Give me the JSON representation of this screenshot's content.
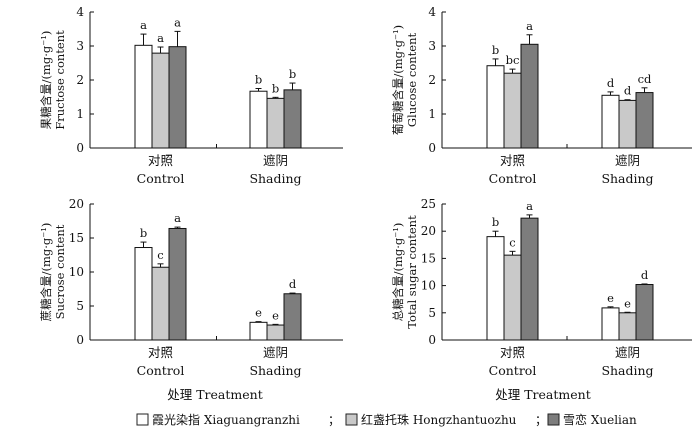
{
  "chart_data": [
    {
      "type": "bar",
      "panel": "top-left",
      "ylabel_cn": "果糖含量/(mg·g⁻¹)",
      "ylabel_en": "Fructose content",
      "ylim": [
        0,
        4
      ],
      "yticks": [
        0,
        1,
        2,
        3,
        4
      ],
      "categories": [
        {
          "cn": "对照",
          "en": "Control"
        },
        {
          "cn": "遮阴",
          "en": "Shading"
        }
      ],
      "series": [
        {
          "name": "霞光染指 Xiaguangranzhi",
          "values": [
            3.02,
            1.67
          ],
          "errors": [
            0.33,
            0.08
          ],
          "letters": [
            "a",
            "b"
          ]
        },
        {
          "name": "红盏托珠 Hongzhantuozhu",
          "values": [
            2.79,
            1.46
          ],
          "errors": [
            0.18,
            0.03
          ],
          "letters": [
            "a",
            "b"
          ]
        },
        {
          "name": "雪恋 Xuelian",
          "values": [
            2.98,
            1.71
          ],
          "errors": [
            0.45,
            0.2
          ],
          "letters": [
            "a",
            "b"
          ]
        }
      ]
    },
    {
      "type": "bar",
      "panel": "top-right",
      "ylabel_cn": "葡萄糖含量/(mg·g⁻¹)",
      "ylabel_en": "Glucose content",
      "ylim": [
        0,
        4
      ],
      "yticks": [
        0,
        1,
        2,
        3,
        4
      ],
      "categories": [
        {
          "cn": "对照",
          "en": "Control"
        },
        {
          "cn": "遮阴",
          "en": "Shading"
        }
      ],
      "series": [
        {
          "name": "霞光染指 Xiaguangranzhi",
          "values": [
            2.42,
            1.55
          ],
          "errors": [
            0.2,
            0.1
          ],
          "letters": [
            "b",
            "d"
          ]
        },
        {
          "name": "红盏托珠 Hongzhantuozhu",
          "values": [
            2.2,
            1.4
          ],
          "errors": [
            0.12,
            0.02
          ],
          "letters": [
            "bc",
            "d"
          ]
        },
        {
          "name": "雪恋 Xuelian",
          "values": [
            3.05,
            1.63
          ],
          "errors": [
            0.28,
            0.14
          ],
          "letters": [
            "a",
            "cd"
          ]
        }
      ]
    },
    {
      "type": "bar",
      "panel": "bottom-left",
      "ylabel_cn": "蔗糖含量/(mg·g⁻¹)",
      "ylabel_en": "Sucrose content",
      "ylim": [
        0,
        20
      ],
      "yticks": [
        0,
        5,
        10,
        15,
        20
      ],
      "categories": [
        {
          "cn": "对照",
          "en": "Control"
        },
        {
          "cn": "遮阴",
          "en": "Shading"
        }
      ],
      "series": [
        {
          "name": "霞光染指 Xiaguangranzhi",
          "values": [
            13.6,
            2.6
          ],
          "errors": [
            0.8,
            0.1
          ],
          "letters": [
            "b",
            "e"
          ]
        },
        {
          "name": "红盏托珠 Hongzhantuozhu",
          "values": [
            10.7,
            2.2
          ],
          "errors": [
            0.5,
            0.1
          ],
          "letters": [
            "c",
            "e"
          ]
        },
        {
          "name": "雪恋 Xuelian",
          "values": [
            16.4,
            6.8
          ],
          "errors": [
            0.2,
            0.1
          ],
          "letters": [
            "a",
            "d"
          ]
        }
      ]
    },
    {
      "type": "bar",
      "panel": "bottom-right",
      "ylabel_cn": "总糖含量/(mg·g⁻¹)",
      "ylabel_en": "Total sugar content",
      "ylim": [
        0,
        25
      ],
      "yticks": [
        0,
        5,
        10,
        15,
        20,
        25
      ],
      "categories": [
        {
          "cn": "对照",
          "en": "Control"
        },
        {
          "cn": "遮阴",
          "en": "Shading"
        }
      ],
      "series": [
        {
          "name": "霞光染指 Xiaguangranzhi",
          "values": [
            19.0,
            5.9
          ],
          "errors": [
            1.0,
            0.2
          ],
          "letters": [
            "b",
            "e"
          ]
        },
        {
          "name": "红盏托珠 Hongzhantuozhu",
          "values": [
            15.6,
            5.0
          ],
          "errors": [
            0.7,
            0.1
          ],
          "letters": [
            "c",
            "e"
          ]
        },
        {
          "name": "雪恋 Xuelian",
          "values": [
            22.4,
            10.2
          ],
          "errors": [
            0.6,
            0.1
          ],
          "letters": [
            "a",
            "d"
          ]
        }
      ]
    }
  ],
  "xlabel": "处理 Treatment",
  "legend": {
    "items": [
      {
        "label": "霞光染指 Xiaguangranzhi",
        "color": "#ffffff"
      },
      {
        "label": "红盏托珠 Hongzhantuozhu",
        "color": "#c9c9c9"
      },
      {
        "label": "雪恋 Xuelian",
        "color": "#7d7d7d"
      }
    ],
    "separator": "；"
  },
  "colors": [
    "#ffffff",
    "#c9c9c9",
    "#7d7d7d"
  ]
}
